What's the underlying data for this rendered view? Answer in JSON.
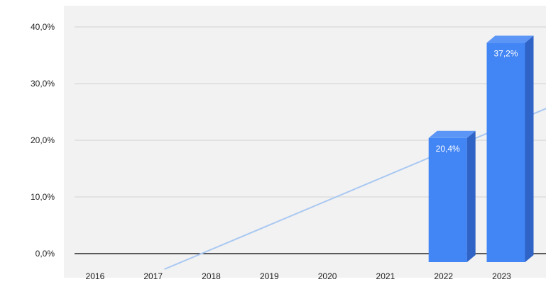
{
  "chart_data": {
    "type": "bar",
    "style": "3d-columns",
    "categories": [
      "2016",
      "2017",
      "2018",
      "2019",
      "2020",
      "2021",
      "2022",
      "2023"
    ],
    "series": [
      {
        "values": [
          0,
          0,
          0,
          0,
          0,
          0,
          20.4,
          37.2
        ],
        "data_labels": [
          "",
          "",
          "",
          "",
          "",
          "",
          "20,4%",
          "37,2%"
        ],
        "color": "#4285f4",
        "side_color": "#2f63c6",
        "top_color": "#5b95f6"
      }
    ],
    "trendline": {
      "type": "linear",
      "color": "#a9c8f2"
    },
    "yaxis": {
      "ticks": [
        0,
        10,
        20,
        30,
        40
      ],
      "tick_labels": [
        "0,0%",
        "10,0%",
        "20,0%",
        "30,0%",
        "40,0%"
      ],
      "ylim": [
        0,
        40
      ]
    },
    "title": "",
    "xlabel": "",
    "ylabel": "",
    "grid": true,
    "legend": "none",
    "colors": {
      "background": "#f2f2f2",
      "grid": "#d2d2d2",
      "axis": "#000000"
    }
  }
}
